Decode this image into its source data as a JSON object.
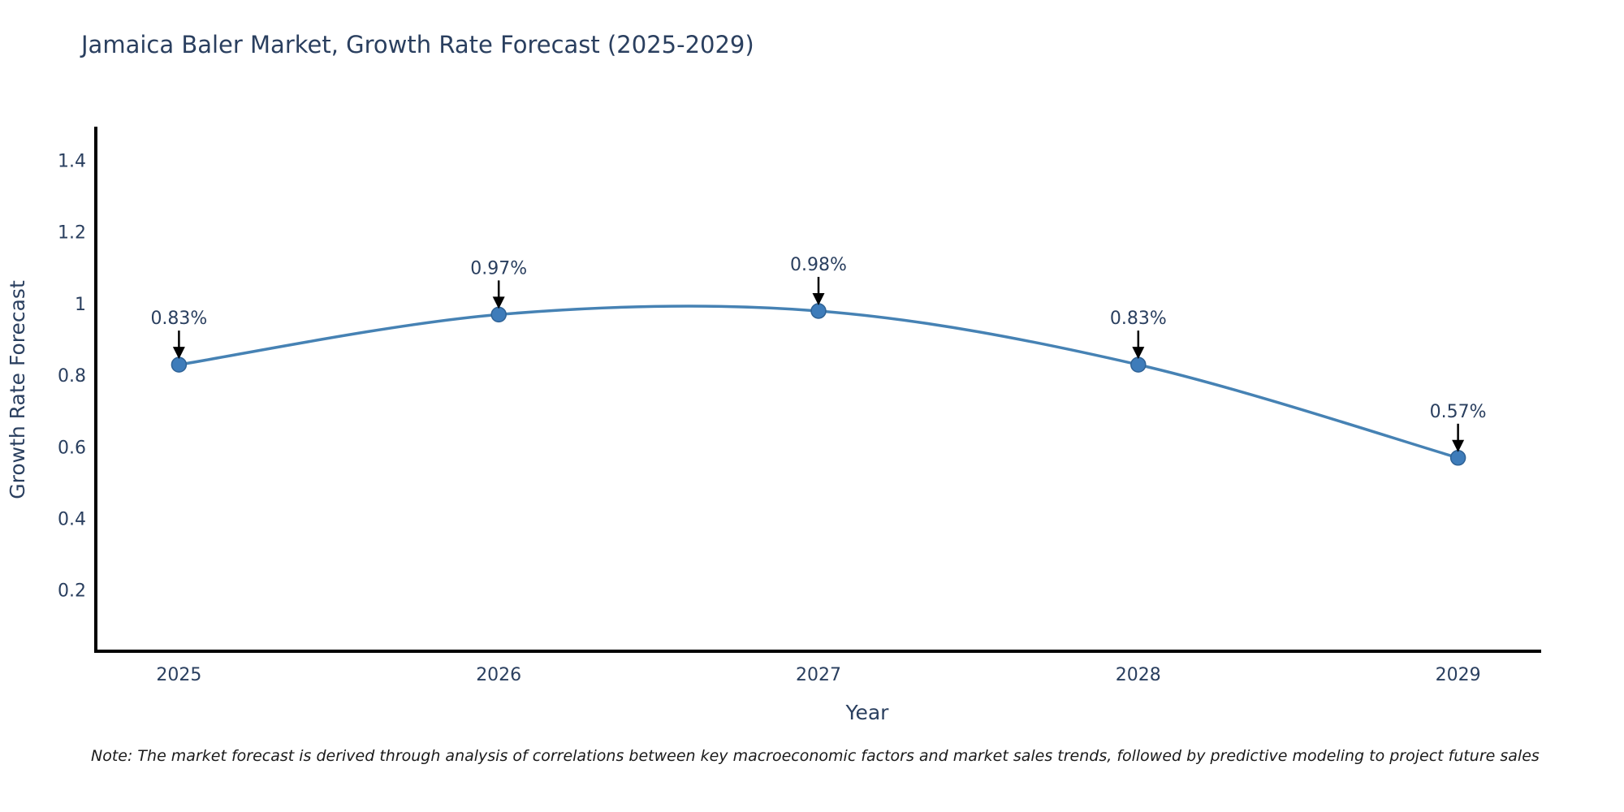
{
  "title": "Jamaica Baler Market, Growth Rate Forecast (2025-2029)",
  "note": "Note: The market forecast is derived through analysis of correlations between key macroeconomic factors and market sales trends, followed by predictive modeling to project future sales",
  "chart_data": {
    "type": "line",
    "title": "Jamaica Baler Market, Growth Rate Forecast (2025-2029)",
    "xlabel": "Year",
    "ylabel": "Growth Rate Forecast",
    "x": [
      2025,
      2026,
      2027,
      2028,
      2029
    ],
    "xtick_labels": [
      "2025",
      "2026",
      "2027",
      "2028",
      "2029"
    ],
    "series": [
      {
        "name": "Growth Rate Forecast",
        "values": [
          0.83,
          0.97,
          0.98,
          0.83,
          0.57
        ]
      }
    ],
    "point_labels": [
      "0.83%",
      "0.97%",
      "0.98%",
      "0.83%",
      "0.57%"
    ],
    "yticks": [
      0.2,
      0.4,
      0.6,
      0.8,
      1,
      1.2,
      1.4
    ],
    "ytick_labels": [
      "0.2",
      "0.4",
      "0.6",
      "0.8",
      "1",
      "1.2",
      "1.4"
    ],
    "xlim": [
      2024.74,
      2029.26
    ],
    "ylim": [
      0.03,
      1.49
    ],
    "grid": false,
    "legend_position": "none",
    "curve_style": "smooth-spline",
    "colors": {
      "line": "#4682b4",
      "marker_fill": "#3e7cba",
      "marker_edge": "#2f6295",
      "axis": "#000000",
      "tick_text": "#2a3f5f",
      "axis_title_text": "#2a3f5f",
      "annotation_text": "#2a3f5f",
      "arrow": "#000000",
      "background": "#ffffff"
    }
  }
}
